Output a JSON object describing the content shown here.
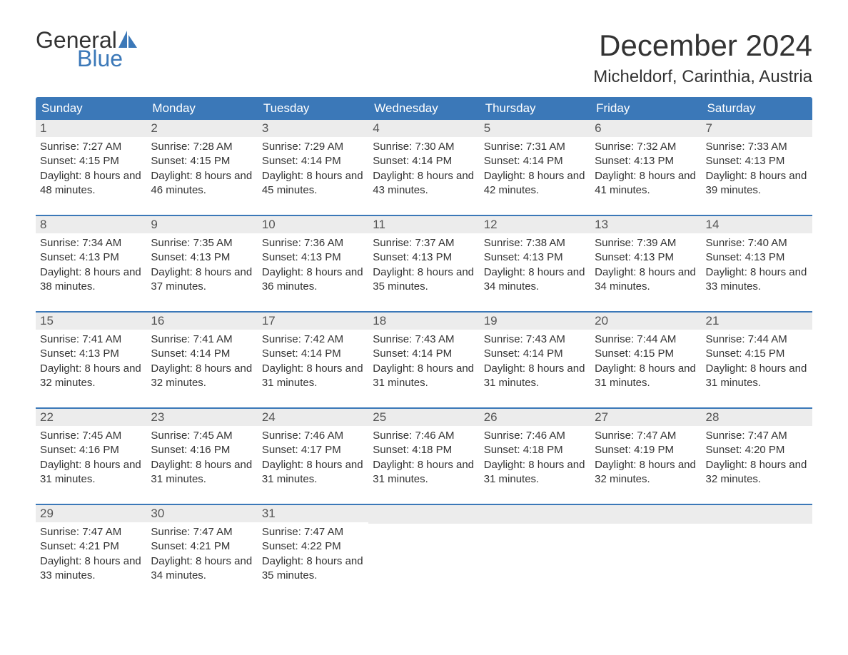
{
  "brand": {
    "general": "General",
    "blue": "Blue"
  },
  "title": "December 2024",
  "location": "Micheldorf, Carinthia, Austria",
  "colors": {
    "header_bg": "#3b78b8",
    "header_text": "#ffffff",
    "date_bg": "#ececec",
    "week_border": "#3b78b8",
    "text": "#333333"
  },
  "day_names": [
    "Sunday",
    "Monday",
    "Tuesday",
    "Wednesday",
    "Thursday",
    "Friday",
    "Saturday"
  ],
  "weeks": [
    [
      {
        "n": "1",
        "sr": "7:27 AM",
        "ss": "4:15 PM",
        "dl": "8 hours and 48 minutes."
      },
      {
        "n": "2",
        "sr": "7:28 AM",
        "ss": "4:15 PM",
        "dl": "8 hours and 46 minutes."
      },
      {
        "n": "3",
        "sr": "7:29 AM",
        "ss": "4:14 PM",
        "dl": "8 hours and 45 minutes."
      },
      {
        "n": "4",
        "sr": "7:30 AM",
        "ss": "4:14 PM",
        "dl": "8 hours and 43 minutes."
      },
      {
        "n": "5",
        "sr": "7:31 AM",
        "ss": "4:14 PM",
        "dl": "8 hours and 42 minutes."
      },
      {
        "n": "6",
        "sr": "7:32 AM",
        "ss": "4:13 PM",
        "dl": "8 hours and 41 minutes."
      },
      {
        "n": "7",
        "sr": "7:33 AM",
        "ss": "4:13 PM",
        "dl": "8 hours and 39 minutes."
      }
    ],
    [
      {
        "n": "8",
        "sr": "7:34 AM",
        "ss": "4:13 PM",
        "dl": "8 hours and 38 minutes."
      },
      {
        "n": "9",
        "sr": "7:35 AM",
        "ss": "4:13 PM",
        "dl": "8 hours and 37 minutes."
      },
      {
        "n": "10",
        "sr": "7:36 AM",
        "ss": "4:13 PM",
        "dl": "8 hours and 36 minutes."
      },
      {
        "n": "11",
        "sr": "7:37 AM",
        "ss": "4:13 PM",
        "dl": "8 hours and 35 minutes."
      },
      {
        "n": "12",
        "sr": "7:38 AM",
        "ss": "4:13 PM",
        "dl": "8 hours and 34 minutes."
      },
      {
        "n": "13",
        "sr": "7:39 AM",
        "ss": "4:13 PM",
        "dl": "8 hours and 34 minutes."
      },
      {
        "n": "14",
        "sr": "7:40 AM",
        "ss": "4:13 PM",
        "dl": "8 hours and 33 minutes."
      }
    ],
    [
      {
        "n": "15",
        "sr": "7:41 AM",
        "ss": "4:13 PM",
        "dl": "8 hours and 32 minutes."
      },
      {
        "n": "16",
        "sr": "7:41 AM",
        "ss": "4:14 PM",
        "dl": "8 hours and 32 minutes."
      },
      {
        "n": "17",
        "sr": "7:42 AM",
        "ss": "4:14 PM",
        "dl": "8 hours and 31 minutes."
      },
      {
        "n": "18",
        "sr": "7:43 AM",
        "ss": "4:14 PM",
        "dl": "8 hours and 31 minutes."
      },
      {
        "n": "19",
        "sr": "7:43 AM",
        "ss": "4:14 PM",
        "dl": "8 hours and 31 minutes."
      },
      {
        "n": "20",
        "sr": "7:44 AM",
        "ss": "4:15 PM",
        "dl": "8 hours and 31 minutes."
      },
      {
        "n": "21",
        "sr": "7:44 AM",
        "ss": "4:15 PM",
        "dl": "8 hours and 31 minutes."
      }
    ],
    [
      {
        "n": "22",
        "sr": "7:45 AM",
        "ss": "4:16 PM",
        "dl": "8 hours and 31 minutes."
      },
      {
        "n": "23",
        "sr": "7:45 AM",
        "ss": "4:16 PM",
        "dl": "8 hours and 31 minutes."
      },
      {
        "n": "24",
        "sr": "7:46 AM",
        "ss": "4:17 PM",
        "dl": "8 hours and 31 minutes."
      },
      {
        "n": "25",
        "sr": "7:46 AM",
        "ss": "4:18 PM",
        "dl": "8 hours and 31 minutes."
      },
      {
        "n": "26",
        "sr": "7:46 AM",
        "ss": "4:18 PM",
        "dl": "8 hours and 31 minutes."
      },
      {
        "n": "27",
        "sr": "7:47 AM",
        "ss": "4:19 PM",
        "dl": "8 hours and 32 minutes."
      },
      {
        "n": "28",
        "sr": "7:47 AM",
        "ss": "4:20 PM",
        "dl": "8 hours and 32 minutes."
      }
    ],
    [
      {
        "n": "29",
        "sr": "7:47 AM",
        "ss": "4:21 PM",
        "dl": "8 hours and 33 minutes."
      },
      {
        "n": "30",
        "sr": "7:47 AM",
        "ss": "4:21 PM",
        "dl": "8 hours and 34 minutes."
      },
      {
        "n": "31",
        "sr": "7:47 AM",
        "ss": "4:22 PM",
        "dl": "8 hours and 35 minutes."
      },
      null,
      null,
      null,
      null
    ]
  ],
  "labels": {
    "sunrise": "Sunrise: ",
    "sunset": "Sunset: ",
    "daylight": "Daylight: "
  }
}
